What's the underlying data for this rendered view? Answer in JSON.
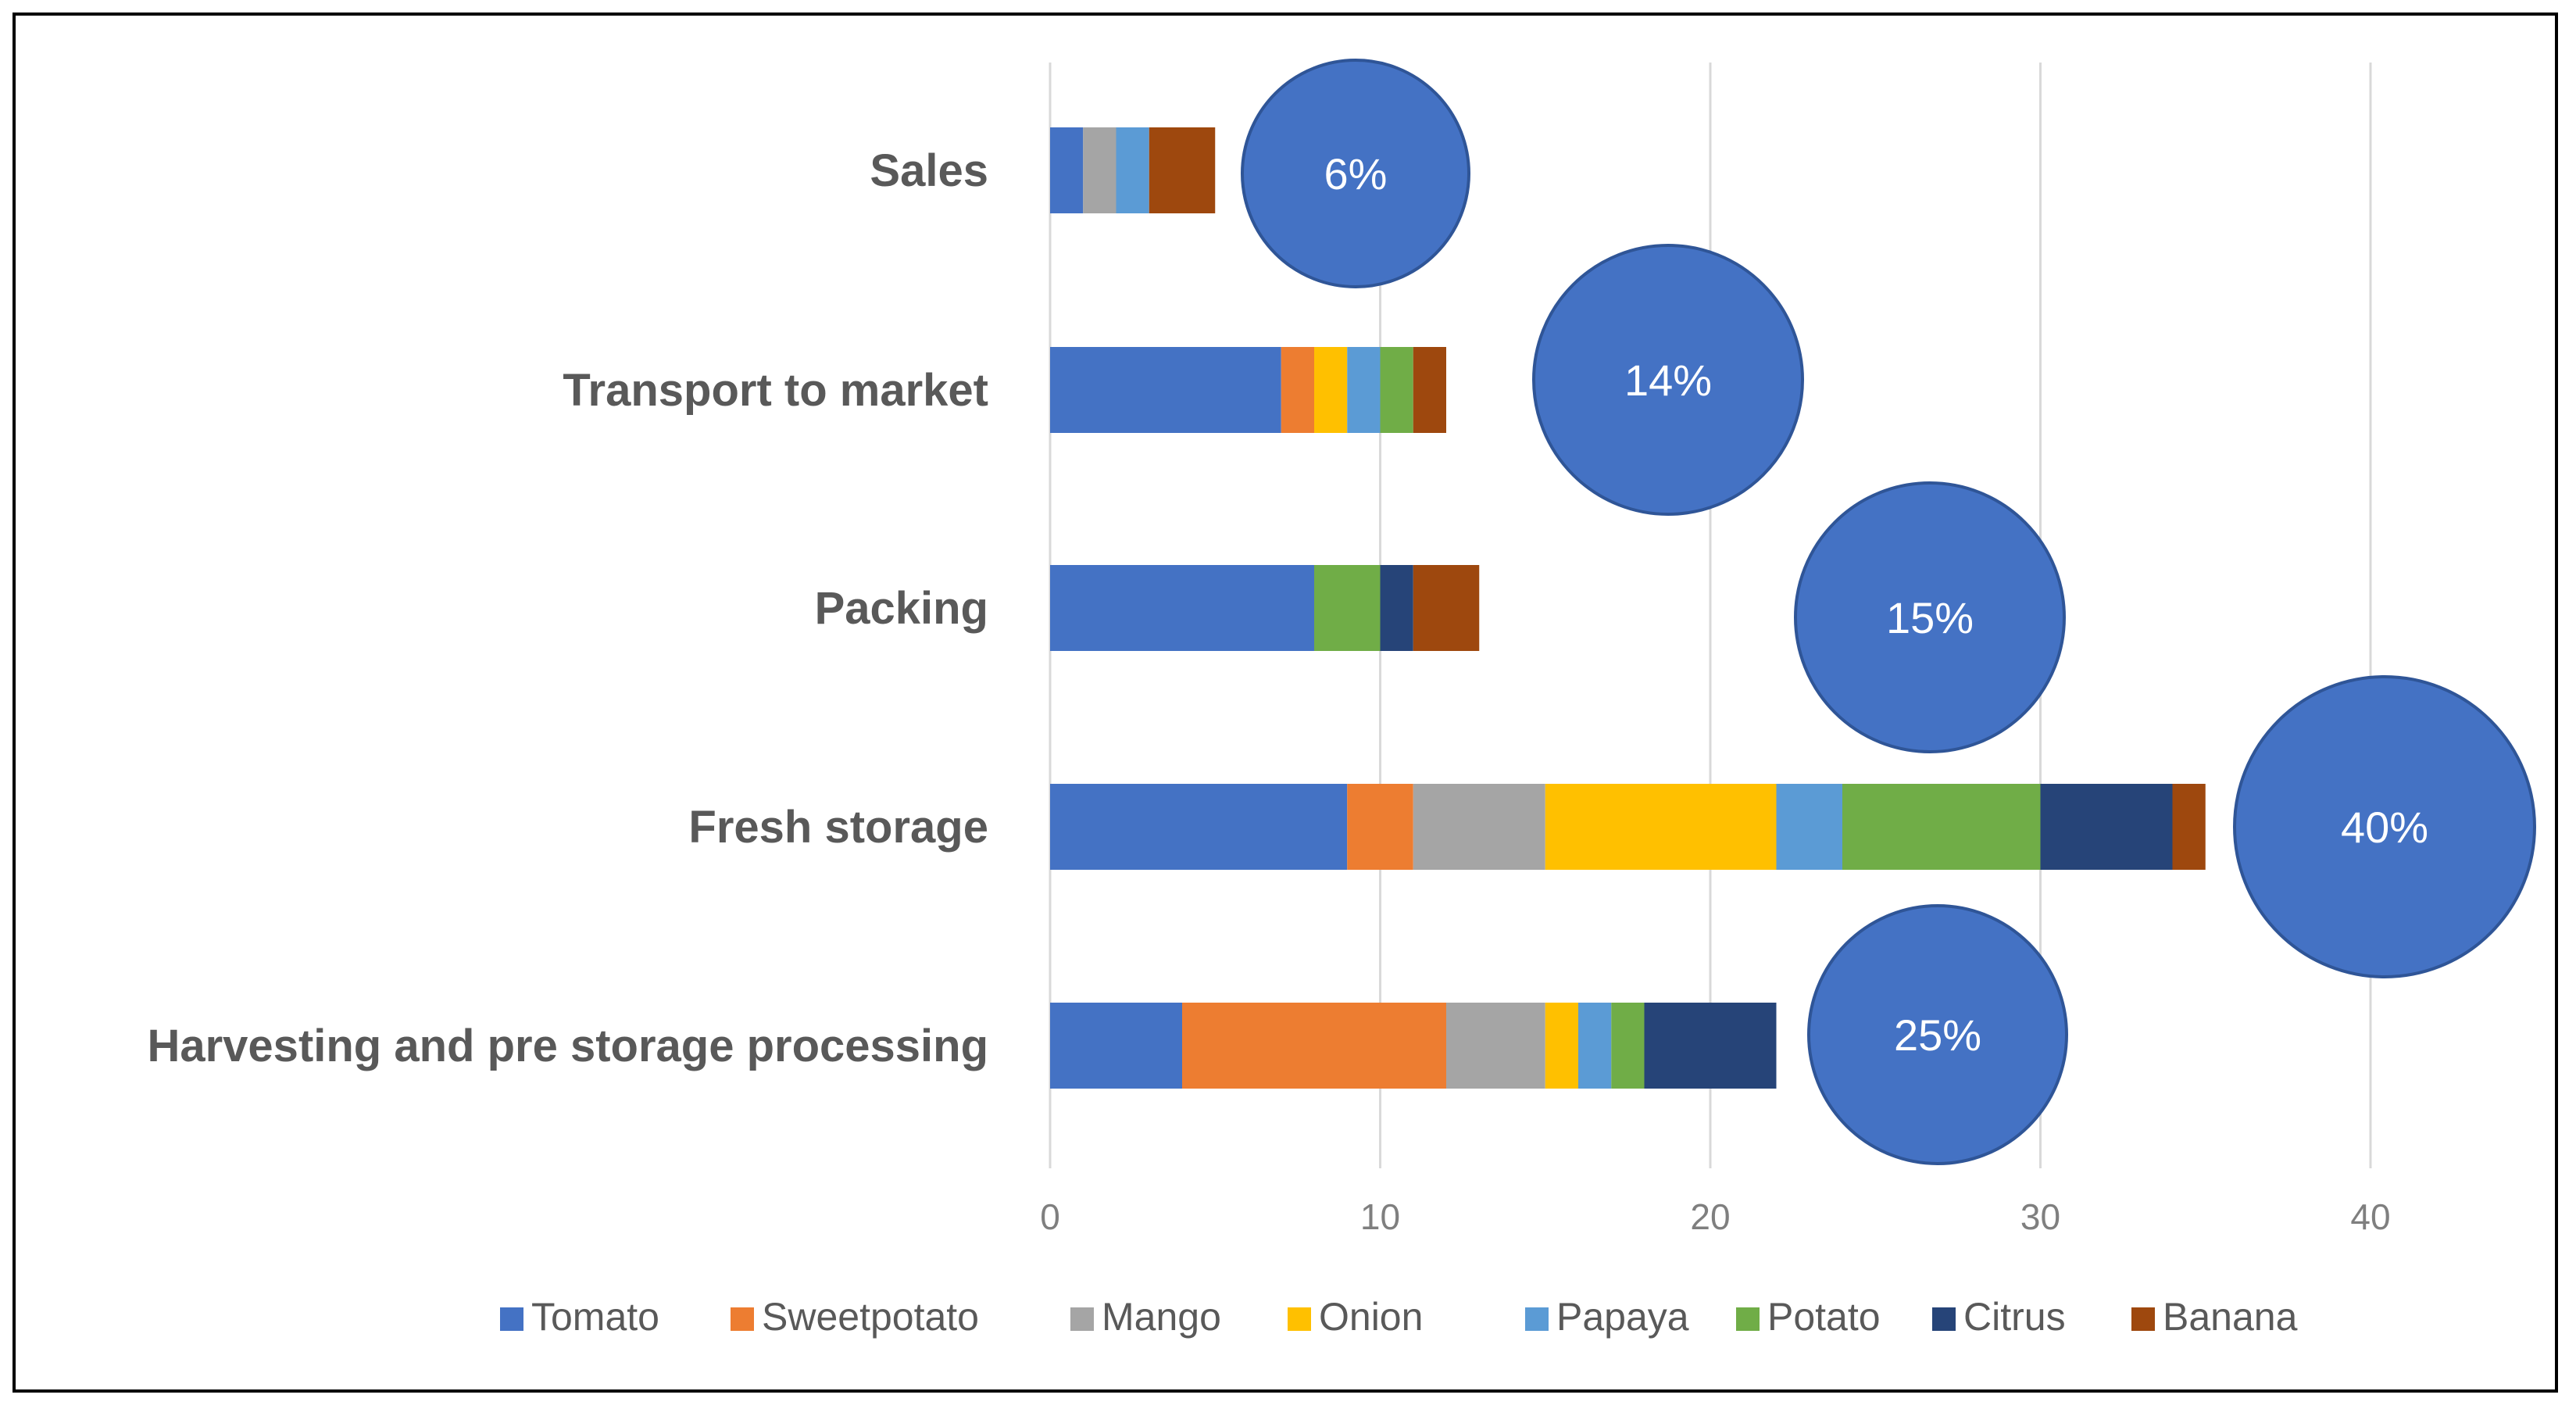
{
  "chart_data": {
    "type": "bar",
    "orientation": "horizontal",
    "stacked": true,
    "categories": [
      "Sales",
      "Transport to market",
      "Packing",
      "Fresh storage",
      "Harvesting and pre storage processing"
    ],
    "series": [
      {
        "name": "Tomato",
        "color": "#4472c4",
        "values": [
          1,
          7,
          8,
          9,
          4
        ]
      },
      {
        "name": "Sweetpotato",
        "color": "#ed7d31",
        "values": [
          0,
          1,
          0,
          2,
          8
        ]
      },
      {
        "name": "Mango",
        "color": "#a5a5a5",
        "values": [
          1,
          0,
          0,
          4,
          3
        ]
      },
      {
        "name": "Onion",
        "color": "#ffc000",
        "values": [
          0,
          1,
          0,
          7,
          1
        ]
      },
      {
        "name": "Papaya",
        "color": "#5b9bd5",
        "values": [
          1,
          1,
          0,
          2,
          1
        ]
      },
      {
        "name": "Potato",
        "color": "#70ad47",
        "values": [
          0,
          1,
          2,
          6,
          1
        ]
      },
      {
        "name": "Citrus",
        "color": "#264478",
        "values": [
          0,
          0,
          1,
          4,
          4
        ]
      },
      {
        "name": "Banana",
        "color": "#9e480e",
        "values": [
          2,
          1,
          2,
          1,
          0
        ]
      }
    ],
    "annotations": [
      {
        "category": "Sales",
        "label": "6%"
      },
      {
        "category": "Transport to market",
        "label": "14%"
      },
      {
        "category": "Packing",
        "label": "15%"
      },
      {
        "category": "Fresh storage",
        "label": "40%"
      },
      {
        "category": "Harvesting and pre storage processing",
        "label": "25%"
      }
    ],
    "annotation_color": "#4472c4",
    "xlim": [
      0,
      40
    ],
    "xticks": [
      0,
      10,
      20,
      30,
      40
    ],
    "grid": true,
    "legend": "bottom",
    "title": "",
    "xlabel": "",
    "ylabel": ""
  }
}
